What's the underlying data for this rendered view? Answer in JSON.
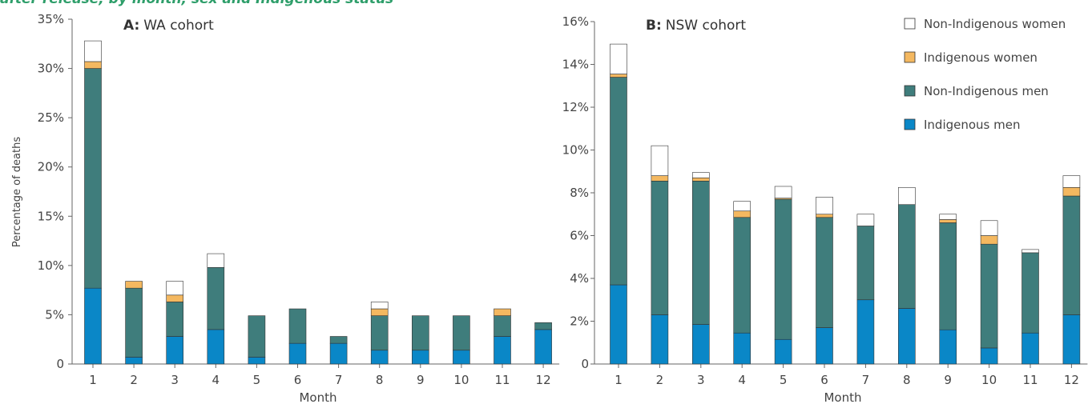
{
  "heading": "after release, by month, sex and Indigenous status",
  "colors": {
    "heading": "#2e9e6a",
    "indigenous_men": "#0a87c7",
    "non_indigenous_men": "#3f7d7c",
    "indigenous_women": "#f4b860",
    "non_indigenous_women": "#ffffff",
    "outline": "#333333",
    "axis": "#666666"
  },
  "legend": {
    "placement": "top-right",
    "items": [
      {
        "label": "Non-Indigenous women",
        "key": "non_indigenous_women"
      },
      {
        "label": "Indigenous women",
        "key": "indigenous_women"
      },
      {
        "label": "Non-Indigenous men",
        "key": "non_indigenous_men"
      },
      {
        "label": "Indigenous men",
        "key": "indigenous_men"
      }
    ]
  },
  "chart_data": [
    {
      "type": "bar",
      "stacked": true,
      "panel_letter": "A:",
      "panel_title": "WA cohort",
      "xlabel": "Month",
      "ylabel": "Percentage of deaths",
      "ylim": [
        0,
        35
      ],
      "yticks": [
        0,
        5,
        10,
        15,
        20,
        25,
        30,
        35
      ],
      "ytick_labels": [
        "0",
        "5%",
        "10%",
        "15%",
        "20%",
        "25%",
        "30%",
        "35%"
      ],
      "categories": [
        "1",
        "2",
        "3",
        "4",
        "5",
        "6",
        "7",
        "8",
        "9",
        "10",
        "11",
        "12"
      ],
      "series": [
        {
          "name": "Indigenous men",
          "key": "indigenous_men",
          "values": [
            7.7,
            0.7,
            2.8,
            3.5,
            0.7,
            2.1,
            2.1,
            1.4,
            1.4,
            1.4,
            2.8,
            3.5
          ]
        },
        {
          "name": "Non-Indigenous men",
          "key": "non_indigenous_men",
          "values": [
            22.3,
            7.0,
            3.5,
            6.3,
            4.2,
            3.5,
            0.7,
            3.5,
            3.5,
            3.5,
            2.1,
            0.7
          ]
        },
        {
          "name": "Indigenous women",
          "key": "indigenous_women",
          "values": [
            0.7,
            0.7,
            0.7,
            0,
            0,
            0,
            0,
            0.7,
            0,
            0,
            0.7,
            0
          ]
        },
        {
          "name": "Non-Indigenous women",
          "key": "non_indigenous_women",
          "values": [
            2.1,
            0,
            1.4,
            1.4,
            0,
            0,
            0,
            0.7,
            0,
            0,
            0,
            0
          ]
        }
      ]
    },
    {
      "type": "bar",
      "stacked": true,
      "panel_letter": "B:",
      "panel_title": "NSW cohort",
      "xlabel": "Month",
      "ylabel": "",
      "ylim": [
        0,
        16
      ],
      "yticks": [
        0,
        2,
        4,
        6,
        8,
        10,
        12,
        14,
        16
      ],
      "ytick_labels": [
        "0",
        "2%",
        "4%",
        "6%",
        "8%",
        "10%",
        "12%",
        "14%",
        "16%"
      ],
      "categories": [
        "1",
        "2",
        "3",
        "4",
        "5",
        "6",
        "7",
        "8",
        "9",
        "10",
        "11",
        "12"
      ],
      "series": [
        {
          "name": "Indigenous men",
          "key": "indigenous_men",
          "values": [
            3.7,
            2.3,
            1.85,
            1.45,
            1.15,
            1.7,
            3.0,
            2.6,
            1.6,
            0.75,
            1.45,
            2.3
          ]
        },
        {
          "name": "Non-Indigenous men",
          "key": "non_indigenous_men",
          "values": [
            9.7,
            6.25,
            6.7,
            5.4,
            6.55,
            5.15,
            3.45,
            4.85,
            5.0,
            4.85,
            3.75,
            5.55
          ]
        },
        {
          "name": "Indigenous women",
          "key": "indigenous_women",
          "values": [
            0.15,
            0.25,
            0.15,
            0.3,
            0.05,
            0.15,
            0,
            0,
            0.15,
            0.4,
            0,
            0.4
          ]
        },
        {
          "name": "Non-Indigenous women",
          "key": "non_indigenous_women",
          "values": [
            1.4,
            1.4,
            0.25,
            0.45,
            0.55,
            0.8,
            0.55,
            0.8,
            0.25,
            0.7,
            0.15,
            0.55
          ]
        }
      ]
    }
  ]
}
